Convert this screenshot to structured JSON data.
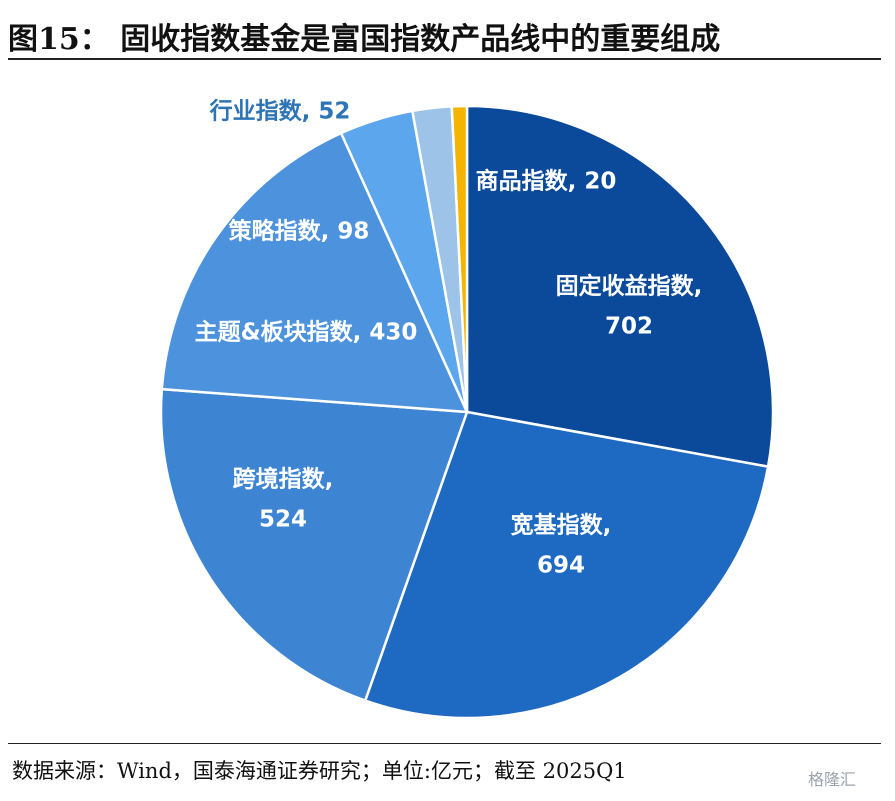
{
  "header": {
    "title": "图15：  固收指数基金是富国指数产品线中的重要组成"
  },
  "footer": {
    "source": "数据来源：Wind，国泰海通证券研究；单位:亿元；截至 2025Q1",
    "watermark": "格隆汇"
  },
  "chart_data": {
    "type": "pie",
    "title": "",
    "unit": "亿元",
    "start_angle_deg": 0,
    "direction": "clockwise",
    "slices": [
      {
        "name": "固定收益指数",
        "value": 702,
        "color": "#0b4a9a",
        "label_lines": [
          "固定收益指数,",
          "702"
        ],
        "label_color": "#ffffff"
      },
      {
        "name": "宽基指数",
        "value": 694,
        "color": "#1e69c2",
        "label_lines": [
          "宽基指数,",
          "694"
        ],
        "label_color": "#ffffff"
      },
      {
        "name": "跨境指数",
        "value": 524,
        "color": "#3d85d3",
        "label_lines": [
          "跨境指数,",
          "524"
        ],
        "label_color": "#ffffff"
      },
      {
        "name": "主题&板块指数",
        "value": 430,
        "color": "#4d92dd",
        "label_lines": [
          "主题&板块指数, 430"
        ],
        "label_color": "#ffffff"
      },
      {
        "name": "策略指数",
        "value": 98,
        "color": "#5ba6ec",
        "label_lines": [
          "策略指数, 98"
        ],
        "label_color": "#ffffff"
      },
      {
        "name": "行业指数",
        "value": 52,
        "color": "#9ec3e8",
        "label_lines": [
          "行业指数, 52"
        ],
        "label_color": "#2e75b6"
      },
      {
        "name": "商品指数",
        "value": 20,
        "color": "#f5b400",
        "label_lines": [
          "商品指数, 20"
        ],
        "label_color": "#ffffff"
      }
    ]
  }
}
